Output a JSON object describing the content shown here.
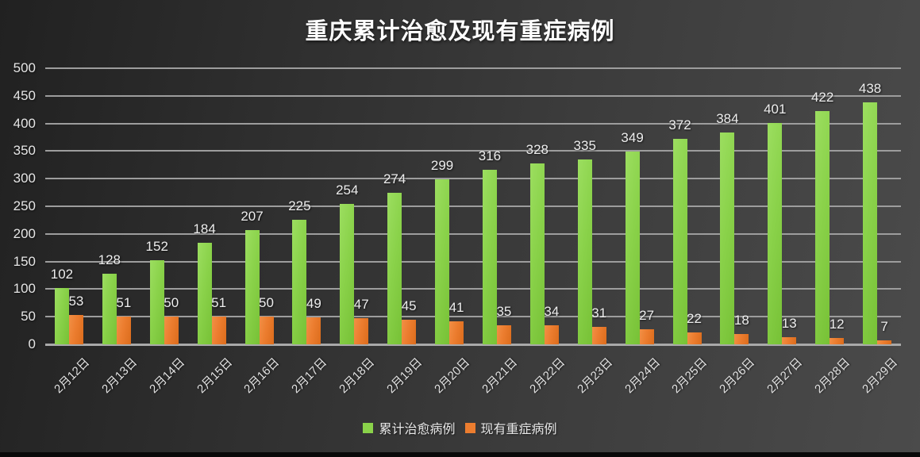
{
  "chart_data": {
    "type": "bar",
    "title": "重庆累计治愈及现有重症病例",
    "categories": [
      "2月12日",
      "2月13日",
      "2月14日",
      "2月15日",
      "2月16日",
      "2月17日",
      "2月18日",
      "2月19日",
      "2月20日",
      "2月21日",
      "2月22日",
      "2月23日",
      "2月24日",
      "2月25日",
      "2月26日",
      "2月27日",
      "2月28日",
      "2月29日"
    ],
    "series": [
      {
        "name": "累计治愈病例",
        "color": "#8AD24A",
        "values": [
          102,
          128,
          152,
          184,
          207,
          225,
          254,
          274,
          299,
          316,
          328,
          335,
          349,
          372,
          384,
          401,
          422,
          438
        ]
      },
      {
        "name": "现有重症病例",
        "color": "#EC7D2F",
        "values": [
          53,
          51,
          50,
          51,
          50,
          49,
          47,
          45,
          41,
          35,
          34,
          31,
          27,
          22,
          18,
          13,
          12,
          7
        ]
      }
    ],
    "ylim": [
      0,
      500
    ],
    "ytick_step": 50,
    "yticks": [
      0,
      50,
      100,
      150,
      200,
      250,
      300,
      350,
      400,
      450,
      500
    ],
    "grid": true,
    "bar_value_labels": true,
    "x_label_rotation_deg": 45,
    "legend_position": "bottom-center",
    "background": "dark-gray-gradient",
    "text_color": "#EDEDED"
  }
}
